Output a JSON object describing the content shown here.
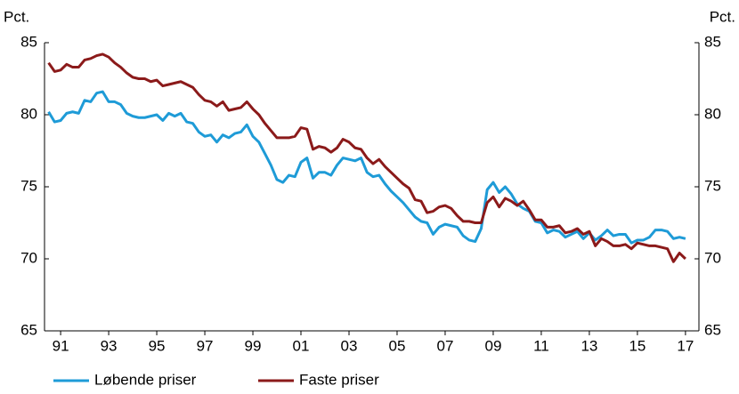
{
  "chart_data": {
    "type": "line",
    "ylabel": "Pct.",
    "y2label": "Pct.",
    "x": [
      1991,
      1991.25,
      1991.5,
      1991.75,
      1992,
      1992.25,
      1992.5,
      1992.75,
      1993,
      1993.25,
      1993.5,
      1993.75,
      1994,
      1994.25,
      1994.5,
      1994.75,
      1995,
      1995.25,
      1995.5,
      1995.75,
      1996,
      1996.25,
      1996.5,
      1996.75,
      1997,
      1997.25,
      1997.5,
      1997.75,
      1998,
      1998.25,
      1998.5,
      1998.75,
      1999,
      1999.25,
      1999.5,
      1999.75,
      2000,
      2000.25,
      2000.5,
      2000.75,
      2001,
      2001.25,
      2001.5,
      2001.75,
      2002,
      2002.25,
      2002.5,
      2002.75,
      2003,
      2003.25,
      2003.5,
      2003.75,
      2004,
      2004.25,
      2004.5,
      2004.75,
      2005,
      2005.25,
      2005.5,
      2005.75,
      2006,
      2006.25,
      2006.5,
      2006.75,
      2007,
      2007.25,
      2007.5,
      2007.75,
      2008,
      2008.25,
      2008.5,
      2008.75,
      2009,
      2009.25,
      2009.5,
      2009.75,
      2010,
      2010.25,
      2010.5,
      2010.75,
      2011,
      2011.25,
      2011.5,
      2011.75,
      2012,
      2012.25,
      2012.5,
      2012.75,
      2013,
      2013.25,
      2013.5,
      2013.75,
      2014,
      2014.25,
      2014.5,
      2014.75,
      2015,
      2015.25,
      2015.5,
      2015.75,
      2016,
      2016.25,
      2016.5,
      2016.75,
      2017,
      2017.25,
      2017.5
    ],
    "series": [
      {
        "name": "Løbende priser",
        "color": "#1e9bd7",
        "values": [
          80.2,
          79.5,
          79.6,
          80.1,
          80.2,
          80.1,
          81.0,
          80.9,
          81.5,
          81.6,
          80.9,
          80.9,
          80.7,
          80.1,
          79.9,
          79.8,
          79.8,
          79.9,
          80.0,
          79.6,
          80.1,
          79.9,
          80.1,
          79.5,
          79.4,
          78.8,
          78.5,
          78.6,
          78.1,
          78.6,
          78.4,
          78.7,
          78.8,
          79.3,
          78.5,
          78.1,
          77.3,
          76.5,
          75.5,
          75.3,
          75.8,
          75.7,
          76.7,
          77.0,
          75.6,
          76.0,
          76.0,
          75.8,
          76.5,
          77.0,
          76.9,
          76.8,
          77.0,
          76.0,
          75.7,
          75.8,
          75.2,
          74.7,
          74.3,
          73.9,
          73.4,
          72.9,
          72.6,
          72.5,
          71.7,
          72.2,
          72.4,
          72.3,
          72.2,
          71.6,
          71.3,
          71.2,
          72.1,
          74.8,
          75.3,
          74.6,
          75.0,
          74.5,
          73.8,
          73.5,
          73.3,
          72.6,
          72.5,
          71.8,
          72.0,
          71.9,
          71.5,
          71.7,
          71.9,
          71.4,
          71.8,
          71.3,
          71.6,
          72.0,
          71.6,
          71.7,
          71.7,
          71.1,
          71.3,
          71.3,
          71.5,
          72.0,
          72.0,
          71.9,
          71.4,
          71.5,
          71.4
        ]
      },
      {
        "name": "Faste priser",
        "color": "#8b1a1a",
        "values": [
          83.6,
          83.0,
          83.1,
          83.5,
          83.3,
          83.3,
          83.8,
          83.9,
          84.1,
          84.2,
          84.0,
          83.6,
          83.3,
          82.9,
          82.6,
          82.5,
          82.5,
          82.3,
          82.4,
          82.0,
          82.1,
          82.2,
          82.3,
          82.1,
          81.9,
          81.4,
          81.0,
          80.9,
          80.6,
          80.9,
          80.3,
          80.4,
          80.5,
          80.9,
          80.4,
          80.0,
          79.4,
          78.9,
          78.4,
          78.4,
          78.4,
          78.5,
          79.1,
          79.0,
          77.6,
          77.8,
          77.7,
          77.4,
          77.7,
          78.3,
          78.1,
          77.7,
          77.6,
          77.0,
          76.6,
          76.9,
          76.4,
          76.0,
          75.6,
          75.2,
          74.9,
          74.1,
          74.0,
          73.2,
          73.3,
          73.6,
          73.7,
          73.5,
          73.0,
          72.6,
          72.6,
          72.5,
          72.5,
          73.9,
          74.3,
          73.6,
          74.2,
          74.0,
          73.7,
          74.0,
          73.4,
          72.7,
          72.7,
          72.2,
          72.2,
          72.3,
          71.8,
          71.9,
          72.1,
          71.7,
          71.9,
          70.9,
          71.4,
          71.2,
          70.9,
          70.9,
          71.0,
          70.7,
          71.1,
          71.0,
          70.9,
          70.9,
          70.8,
          70.7,
          69.8,
          70.4,
          70.0
        ]
      }
    ],
    "xlim": [
      1990.83,
      2018.06
    ],
    "xticks": [
      {
        "value": 1991.5,
        "label": "91"
      },
      {
        "value": 1993.5,
        "label": "93"
      },
      {
        "value": 1995.5,
        "label": "95"
      },
      {
        "value": 1997.5,
        "label": "97"
      },
      {
        "value": 1999.5,
        "label": "99"
      },
      {
        "value": 2001.5,
        "label": "01"
      },
      {
        "value": 2003.5,
        "label": "03"
      },
      {
        "value": 2005.5,
        "label": "05"
      },
      {
        "value": 2007.5,
        "label": "07"
      },
      {
        "value": 2009.5,
        "label": "09"
      },
      {
        "value": 2011.5,
        "label": "11"
      },
      {
        "value": 2013.5,
        "label": "13"
      },
      {
        "value": 2015.5,
        "label": "15"
      },
      {
        "value": 2017.5,
        "label": "17"
      }
    ],
    "ylim": [
      65,
      85
    ],
    "yticks": [
      65,
      70,
      75,
      80,
      85
    ],
    "y2lim": [
      65,
      85
    ],
    "y2ticks": [
      65,
      70,
      75,
      80,
      85
    ]
  }
}
